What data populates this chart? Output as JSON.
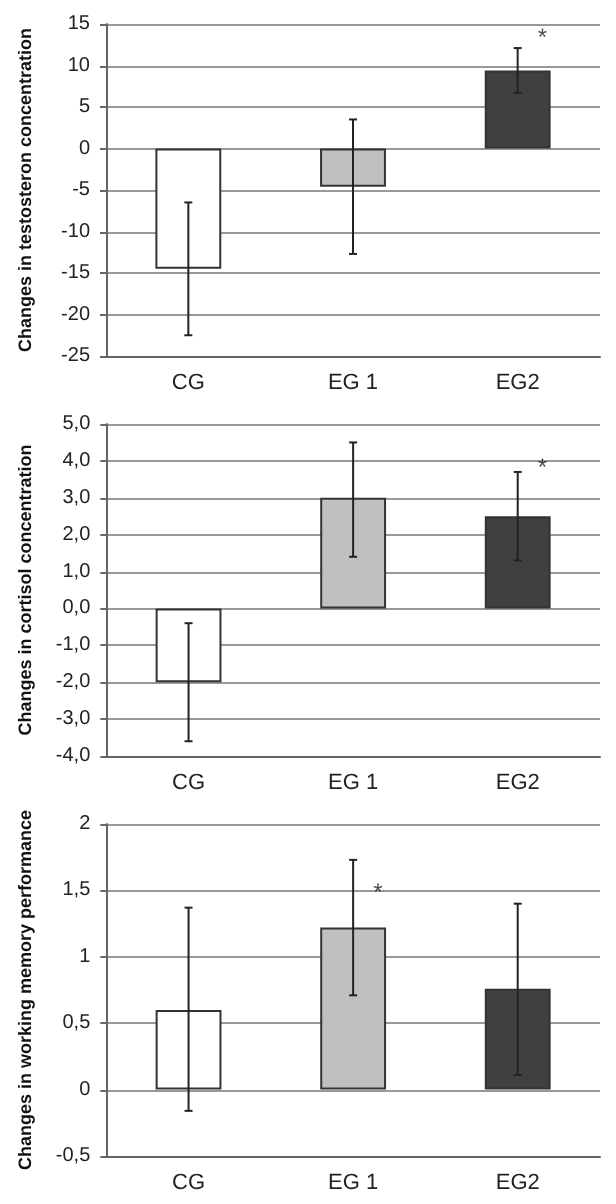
{
  "chart_data": [
    {
      "type": "bar",
      "ylabel": "Changes in testosteron concentration",
      "categories": [
        "CG",
        "EG 1",
        "EG2"
      ],
      "values": [
        -14.5,
        -4.6,
        9.4
      ],
      "colors": [
        "#ffffff",
        "#c0c0c0",
        "#404040"
      ],
      "errors": [
        [
          -22.5,
          -6.5
        ],
        [
          -12.7,
          3.5
        ],
        [
          6.7,
          12.1
        ]
      ],
      "ylim": [
        -25,
        15
      ],
      "yticks": [
        -25,
        -20,
        -15,
        -10,
        -5,
        0,
        5,
        10,
        15
      ],
      "grid": "y",
      "annotations": [
        {
          "text": "*",
          "x": "EG2",
          "y": 12
        }
      ]
    },
    {
      "type": "bar",
      "ylabel": "Changes in cortisol concentration",
      "categories": [
        "CG",
        "EG 1",
        "EG2"
      ],
      "values": [
        -2.0,
        3.0,
        2.5
      ],
      "colors": [
        "#ffffff",
        "#c0c0c0",
        "#404040"
      ],
      "errors": [
        [
          -3.6,
          -0.4
        ],
        [
          1.4,
          4.5
        ],
        [
          1.3,
          3.7
        ]
      ],
      "ylim": [
        -4,
        5
      ],
      "yticks": [
        {
          "value": -4,
          "label": "-4,0"
        },
        {
          "value": -3,
          "label": "-3,0"
        },
        {
          "value": -2,
          "label": "-2,0"
        },
        {
          "value": -1,
          "label": "-1,0"
        },
        {
          "value": 0,
          "label": "0,0"
        },
        {
          "value": 1,
          "label": "1,0"
        },
        {
          "value": 2,
          "label": "2,0"
        },
        {
          "value": 3,
          "label": "3,0"
        },
        {
          "value": 4,
          "label": "4,0"
        },
        {
          "value": 5,
          "label": "5,0"
        }
      ],
      "grid": "y",
      "annotations": [
        {
          "text": "*",
          "x": "EG2",
          "y": 3.5
        }
      ]
    },
    {
      "type": "bar",
      "ylabel": "Changes in working memory performance",
      "categories": [
        "CG",
        "EG 1",
        "EG2"
      ],
      "values": [
        0.6,
        1.22,
        0.76
      ],
      "colors": [
        "#ffffff",
        "#c0c0c0",
        "#404040"
      ],
      "errors": [
        [
          -0.16,
          1.37
        ],
        [
          0.71,
          1.73
        ],
        [
          0.11,
          1.4
        ]
      ],
      "ylim": [
        -0.5,
        2
      ],
      "yticks": [
        {
          "value": -0.5,
          "label": "-0,5"
        },
        0,
        {
          "value": 0.5,
          "label": "0,5"
        },
        1,
        {
          "value": 1.5,
          "label": "1,5"
        },
        2
      ],
      "grid": "y",
      "annotations": [
        {
          "text": "*",
          "x": "EG 1",
          "y": 1.4
        }
      ]
    }
  ]
}
